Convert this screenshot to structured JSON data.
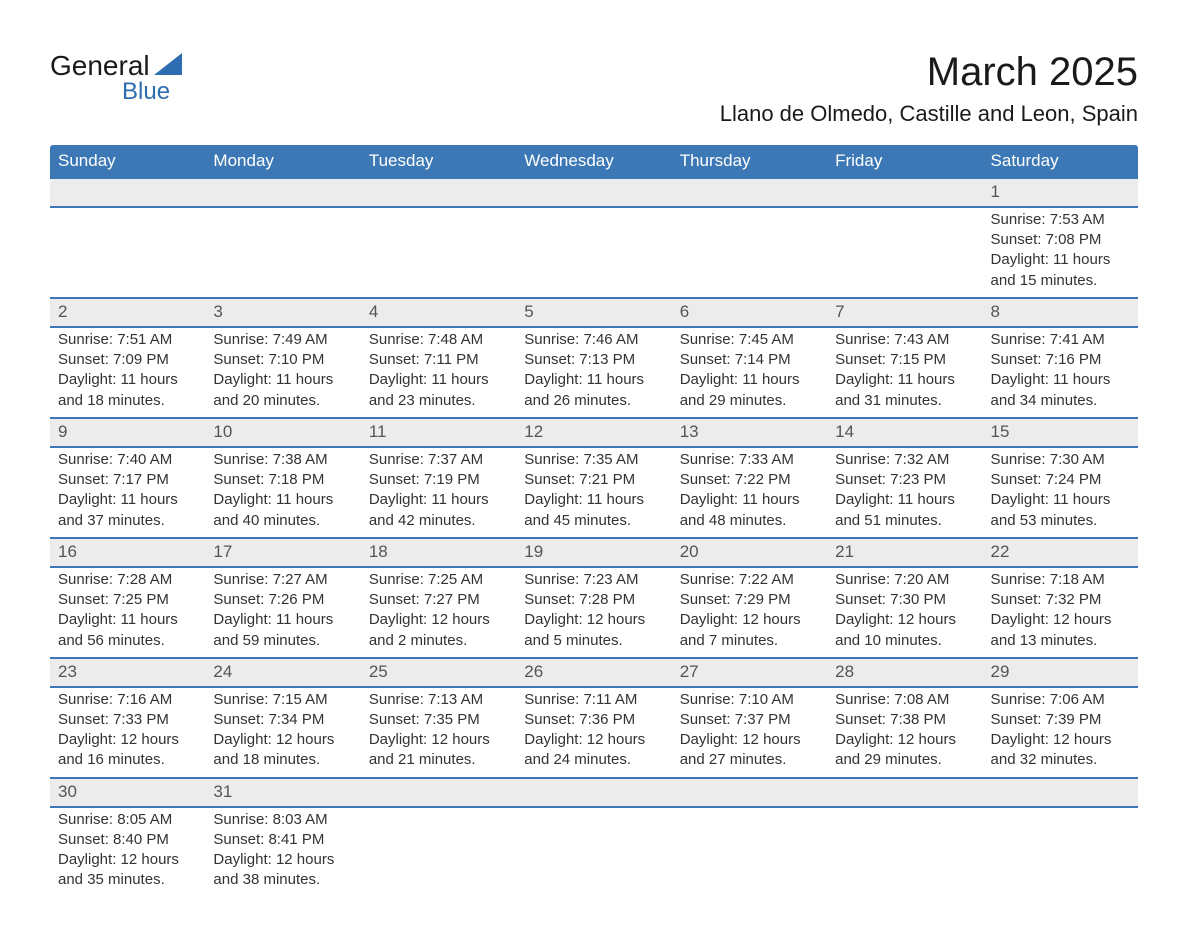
{
  "logo": {
    "text_general": "General",
    "text_blue": "Blue",
    "triangle_color": "#2e6eb0"
  },
  "title": {
    "month": "March 2025",
    "location": "Llano de Olmedo, Castille and Leon, Spain"
  },
  "colors": {
    "header_bg": "#3b78b5",
    "header_text": "#ffffff",
    "daynum_bg": "#ececec",
    "row_border": "#3b78b5",
    "body_text": "#333333"
  },
  "fonts": {
    "title_month_size_pt": 30,
    "title_location_size_pt": 16,
    "weekday_size_pt": 13,
    "daynum_size_pt": 13,
    "detail_size_pt": 11
  },
  "weekdays": [
    "Sunday",
    "Monday",
    "Tuesday",
    "Wednesday",
    "Thursday",
    "Friday",
    "Saturday"
  ],
  "weeks": [
    [
      null,
      null,
      null,
      null,
      null,
      null,
      {
        "day": "1",
        "sunrise": "Sunrise: 7:53 AM",
        "sunset": "Sunset: 7:08 PM",
        "daylight": "Daylight: 11 hours and 15 minutes."
      }
    ],
    [
      {
        "day": "2",
        "sunrise": "Sunrise: 7:51 AM",
        "sunset": "Sunset: 7:09 PM",
        "daylight": "Daylight: 11 hours and 18 minutes."
      },
      {
        "day": "3",
        "sunrise": "Sunrise: 7:49 AM",
        "sunset": "Sunset: 7:10 PM",
        "daylight": "Daylight: 11 hours and 20 minutes."
      },
      {
        "day": "4",
        "sunrise": "Sunrise: 7:48 AM",
        "sunset": "Sunset: 7:11 PM",
        "daylight": "Daylight: 11 hours and 23 minutes."
      },
      {
        "day": "5",
        "sunrise": "Sunrise: 7:46 AM",
        "sunset": "Sunset: 7:13 PM",
        "daylight": "Daylight: 11 hours and 26 minutes."
      },
      {
        "day": "6",
        "sunrise": "Sunrise: 7:45 AM",
        "sunset": "Sunset: 7:14 PM",
        "daylight": "Daylight: 11 hours and 29 minutes."
      },
      {
        "day": "7",
        "sunrise": "Sunrise: 7:43 AM",
        "sunset": "Sunset: 7:15 PM",
        "daylight": "Daylight: 11 hours and 31 minutes."
      },
      {
        "day": "8",
        "sunrise": "Sunrise: 7:41 AM",
        "sunset": "Sunset: 7:16 PM",
        "daylight": "Daylight: 11 hours and 34 minutes."
      }
    ],
    [
      {
        "day": "9",
        "sunrise": "Sunrise: 7:40 AM",
        "sunset": "Sunset: 7:17 PM",
        "daylight": "Daylight: 11 hours and 37 minutes."
      },
      {
        "day": "10",
        "sunrise": "Sunrise: 7:38 AM",
        "sunset": "Sunset: 7:18 PM",
        "daylight": "Daylight: 11 hours and 40 minutes."
      },
      {
        "day": "11",
        "sunrise": "Sunrise: 7:37 AM",
        "sunset": "Sunset: 7:19 PM",
        "daylight": "Daylight: 11 hours and 42 minutes."
      },
      {
        "day": "12",
        "sunrise": "Sunrise: 7:35 AM",
        "sunset": "Sunset: 7:21 PM",
        "daylight": "Daylight: 11 hours and 45 minutes."
      },
      {
        "day": "13",
        "sunrise": "Sunrise: 7:33 AM",
        "sunset": "Sunset: 7:22 PM",
        "daylight": "Daylight: 11 hours and 48 minutes."
      },
      {
        "day": "14",
        "sunrise": "Sunrise: 7:32 AM",
        "sunset": "Sunset: 7:23 PM",
        "daylight": "Daylight: 11 hours and 51 minutes."
      },
      {
        "day": "15",
        "sunrise": "Sunrise: 7:30 AM",
        "sunset": "Sunset: 7:24 PM",
        "daylight": "Daylight: 11 hours and 53 minutes."
      }
    ],
    [
      {
        "day": "16",
        "sunrise": "Sunrise: 7:28 AM",
        "sunset": "Sunset: 7:25 PM",
        "daylight": "Daylight: 11 hours and 56 minutes."
      },
      {
        "day": "17",
        "sunrise": "Sunrise: 7:27 AM",
        "sunset": "Sunset: 7:26 PM",
        "daylight": "Daylight: 11 hours and 59 minutes."
      },
      {
        "day": "18",
        "sunrise": "Sunrise: 7:25 AM",
        "sunset": "Sunset: 7:27 PM",
        "daylight": "Daylight: 12 hours and 2 minutes."
      },
      {
        "day": "19",
        "sunrise": "Sunrise: 7:23 AM",
        "sunset": "Sunset: 7:28 PM",
        "daylight": "Daylight: 12 hours and 5 minutes."
      },
      {
        "day": "20",
        "sunrise": "Sunrise: 7:22 AM",
        "sunset": "Sunset: 7:29 PM",
        "daylight": "Daylight: 12 hours and 7 minutes."
      },
      {
        "day": "21",
        "sunrise": "Sunrise: 7:20 AM",
        "sunset": "Sunset: 7:30 PM",
        "daylight": "Daylight: 12 hours and 10 minutes."
      },
      {
        "day": "22",
        "sunrise": "Sunrise: 7:18 AM",
        "sunset": "Sunset: 7:32 PM",
        "daylight": "Daylight: 12 hours and 13 minutes."
      }
    ],
    [
      {
        "day": "23",
        "sunrise": "Sunrise: 7:16 AM",
        "sunset": "Sunset: 7:33 PM",
        "daylight": "Daylight: 12 hours and 16 minutes."
      },
      {
        "day": "24",
        "sunrise": "Sunrise: 7:15 AM",
        "sunset": "Sunset: 7:34 PM",
        "daylight": "Daylight: 12 hours and 18 minutes."
      },
      {
        "day": "25",
        "sunrise": "Sunrise: 7:13 AM",
        "sunset": "Sunset: 7:35 PM",
        "daylight": "Daylight: 12 hours and 21 minutes."
      },
      {
        "day": "26",
        "sunrise": "Sunrise: 7:11 AM",
        "sunset": "Sunset: 7:36 PM",
        "daylight": "Daylight: 12 hours and 24 minutes."
      },
      {
        "day": "27",
        "sunrise": "Sunrise: 7:10 AM",
        "sunset": "Sunset: 7:37 PM",
        "daylight": "Daylight: 12 hours and 27 minutes."
      },
      {
        "day": "28",
        "sunrise": "Sunrise: 7:08 AM",
        "sunset": "Sunset: 7:38 PM",
        "daylight": "Daylight: 12 hours and 29 minutes."
      },
      {
        "day": "29",
        "sunrise": "Sunrise: 7:06 AM",
        "sunset": "Sunset: 7:39 PM",
        "daylight": "Daylight: 12 hours and 32 minutes."
      }
    ],
    [
      {
        "day": "30",
        "sunrise": "Sunrise: 8:05 AM",
        "sunset": "Sunset: 8:40 PM",
        "daylight": "Daylight: 12 hours and 35 minutes."
      },
      {
        "day": "31",
        "sunrise": "Sunrise: 8:03 AM",
        "sunset": "Sunset: 8:41 PM",
        "daylight": "Daylight: 12 hours and 38 minutes."
      },
      null,
      null,
      null,
      null,
      null
    ]
  ]
}
